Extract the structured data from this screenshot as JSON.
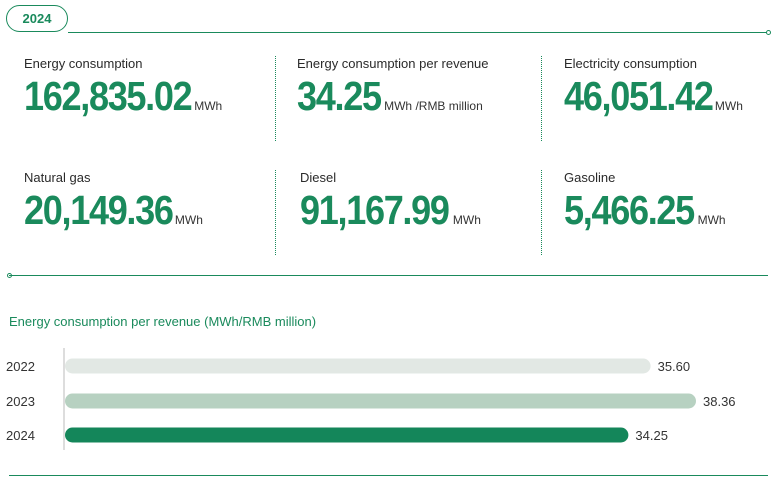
{
  "year_badge": "2024",
  "metrics": [
    {
      "label": "Energy consumption",
      "value": "162,835.02",
      "unit": "MWh"
    },
    {
      "label": "Energy consumption per revenue",
      "value": "34.25",
      "unit": "MWh /RMB million"
    },
    {
      "label": "Electricity consumption",
      "value": "46,051.42",
      "unit": "MWh"
    },
    {
      "label": "Natural gas",
      "value": "20,149.36",
      "unit": "MWh"
    },
    {
      "label": "Diesel",
      "value": "91,167.99",
      "unit": "MWh"
    },
    {
      "label": "Gasoline",
      "value": "5,466.25",
      "unit": "MWh"
    }
  ],
  "colors": {
    "accent": "#1a8a5c"
  },
  "chart_data": {
    "type": "bar",
    "orientation": "horizontal",
    "title": "Energy consumption per revenue (MWh/RMB million)",
    "categories": [
      "2022",
      "2023",
      "2024"
    ],
    "values": [
      35.6,
      38.36,
      34.25
    ],
    "value_labels": [
      "35.60",
      "38.36",
      "34.25"
    ],
    "bar_colors": [
      "#e2e8e4",
      "#b7d1c1",
      "#14865a"
    ],
    "xlim": [
      0,
      38.36
    ],
    "grid": false
  }
}
